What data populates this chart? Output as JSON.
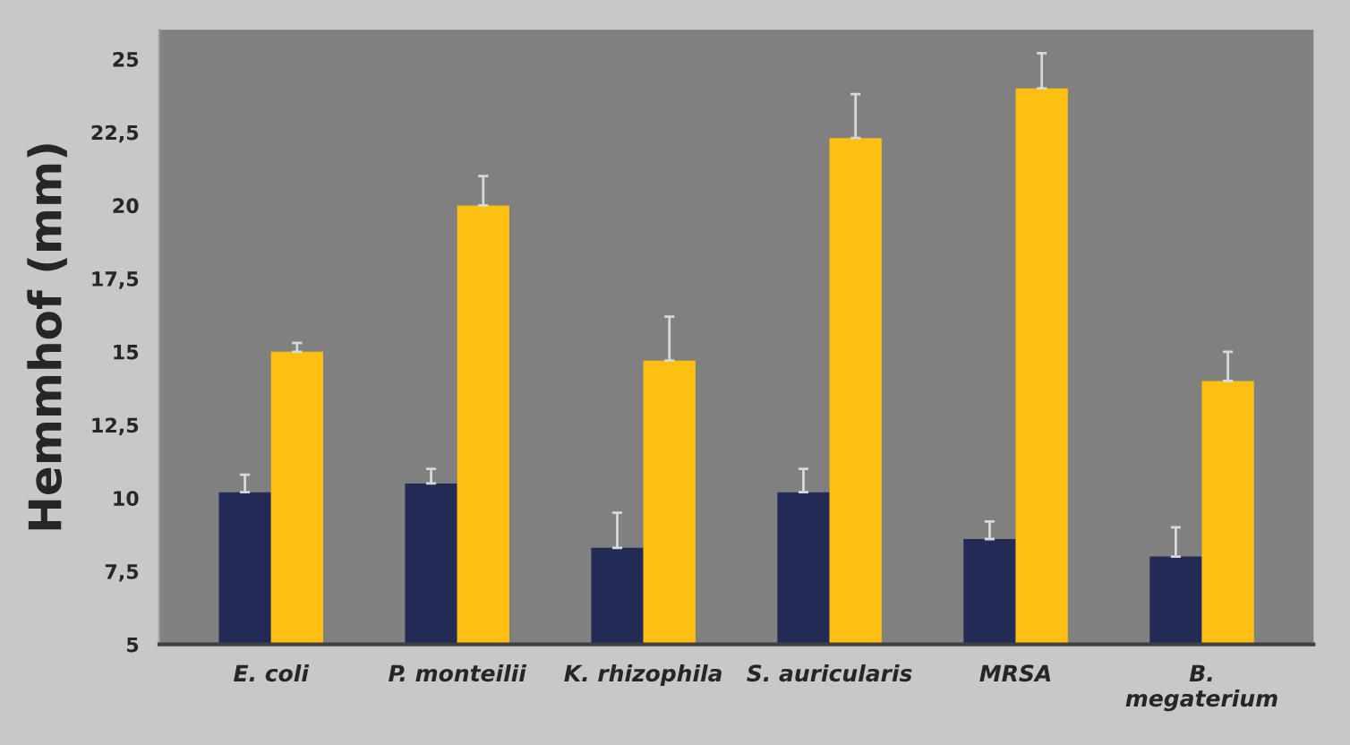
{
  "chart_data": {
    "type": "bar",
    "ylabel": "Hemmhof (mm)",
    "categories": [
      "E. coli",
      "P. monteilii",
      "K. rhizophila",
      "S. auricularis",
      "MRSA",
      "B.\nmegaterium"
    ],
    "series": [
      {
        "color": "#222b55",
        "values": [
          10.2,
          10.5,
          8.3,
          10.2,
          8.6,
          8.0
        ],
        "errors": [
          [
            10.2,
            10.8
          ],
          [
            10.5,
            11.0
          ],
          [
            8.3,
            9.5
          ],
          [
            10.2,
            11.0
          ],
          [
            8.6,
            9.2
          ],
          [
            8.0,
            9.0
          ]
        ]
      },
      {
        "color": "#fdbf12",
        "values": [
          15.0,
          20.0,
          14.7,
          22.3,
          24.0,
          14.0
        ],
        "errors": [
          [
            15.0,
            15.3
          ],
          [
            20.0,
            21.0
          ],
          [
            14.7,
            16.2
          ],
          [
            22.3,
            23.8
          ],
          [
            24.0,
            25.2
          ],
          [
            14.0,
            15.0
          ]
        ]
      }
    ],
    "ylim": [
      5,
      26
    ],
    "yticks": [
      5,
      {
        "value": 7.5,
        "label": "7,5"
      },
      10,
      {
        "value": 12.5,
        "label": "12,5"
      },
      15,
      {
        "value": 17.5,
        "label": "17,5"
      },
      20,
      {
        "value": 22.5,
        "label": "22,5"
      },
      25
    ],
    "grid": false,
    "legend": false
  }
}
